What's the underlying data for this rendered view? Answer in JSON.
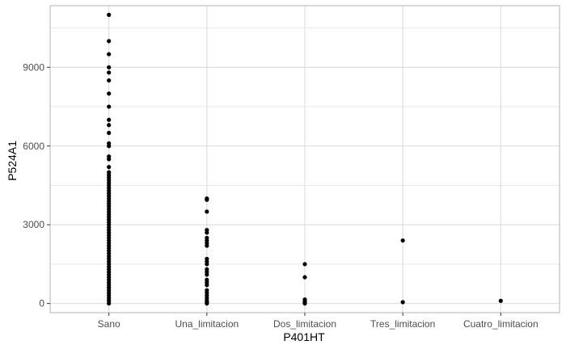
{
  "chart_data": {
    "type": "scatter",
    "xlabel": "P401HT",
    "ylabel": "P524A1",
    "categories": [
      "Sano",
      "Una_limitacion",
      "Dos_limitacion",
      "Tres_limitacion",
      "Cuatro_limitacion"
    ],
    "yticks": [
      0,
      3000,
      6000,
      9000
    ],
    "ylim": [
      -350,
      11350
    ],
    "grid": true,
    "colors": {
      "points": "#000000",
      "grid": "#dcdcdc",
      "panel_border": "#b3b3b3"
    },
    "points": [
      {
        "x": "Sano",
        "y": 11000
      },
      {
        "x": "Sano",
        "y": 10000
      },
      {
        "x": "Sano",
        "y": 9500
      },
      {
        "x": "Sano",
        "y": 9000
      },
      {
        "x": "Sano",
        "y": 8800
      },
      {
        "x": "Sano",
        "y": 8500
      },
      {
        "x": "Sano",
        "y": 8000
      },
      {
        "x": "Sano",
        "y": 7500
      },
      {
        "x": "Sano",
        "y": 7000
      },
      {
        "x": "Sano",
        "y": 6800
      },
      {
        "x": "Sano",
        "y": 6500
      },
      {
        "x": "Sano",
        "y": 6100
      },
      {
        "x": "Sano",
        "y": 6000
      },
      {
        "x": "Sano",
        "y": 5600
      },
      {
        "x": "Sano",
        "y": 5500
      },
      {
        "x": "Sano",
        "y": 5200
      },
      {
        "x": "Sano",
        "y": 5000
      },
      {
        "x": "Sano",
        "y": 4900
      },
      {
        "x": "Sano",
        "y": 4800
      },
      {
        "x": "Sano",
        "y": 4700
      },
      {
        "x": "Sano",
        "y": 4600
      },
      {
        "x": "Sano",
        "y": 4500
      },
      {
        "x": "Sano",
        "y": 4400
      },
      {
        "x": "Sano",
        "y": 4300
      },
      {
        "x": "Sano",
        "y": 4200
      },
      {
        "x": "Sano",
        "y": 4100
      },
      {
        "x": "Sano",
        "y": 4000
      },
      {
        "x": "Sano",
        "y": 3900
      },
      {
        "x": "Sano",
        "y": 3800
      },
      {
        "x": "Sano",
        "y": 3700
      },
      {
        "x": "Sano",
        "y": 3600
      },
      {
        "x": "Sano",
        "y": 3500
      },
      {
        "x": "Sano",
        "y": 3400
      },
      {
        "x": "Sano",
        "y": 3300
      },
      {
        "x": "Sano",
        "y": 3200
      },
      {
        "x": "Sano",
        "y": 3100
      },
      {
        "x": "Sano",
        "y": 3000
      },
      {
        "x": "Sano",
        "y": 2900
      },
      {
        "x": "Sano",
        "y": 2800
      },
      {
        "x": "Sano",
        "y": 2700
      },
      {
        "x": "Sano",
        "y": 2600
      },
      {
        "x": "Sano",
        "y": 2500
      },
      {
        "x": "Sano",
        "y": 2400
      },
      {
        "x": "Sano",
        "y": 2300
      },
      {
        "x": "Sano",
        "y": 2200
      },
      {
        "x": "Sano",
        "y": 2100
      },
      {
        "x": "Sano",
        "y": 2000
      },
      {
        "x": "Sano",
        "y": 1900
      },
      {
        "x": "Sano",
        "y": 1800
      },
      {
        "x": "Sano",
        "y": 1700
      },
      {
        "x": "Sano",
        "y": 1600
      },
      {
        "x": "Sano",
        "y": 1500
      },
      {
        "x": "Sano",
        "y": 1400
      },
      {
        "x": "Sano",
        "y": 1300
      },
      {
        "x": "Sano",
        "y": 1200
      },
      {
        "x": "Sano",
        "y": 1100
      },
      {
        "x": "Sano",
        "y": 1000
      },
      {
        "x": "Sano",
        "y": 900
      },
      {
        "x": "Sano",
        "y": 800
      },
      {
        "x": "Sano",
        "y": 700
      },
      {
        "x": "Sano",
        "y": 600
      },
      {
        "x": "Sano",
        "y": 500
      },
      {
        "x": "Sano",
        "y": 400
      },
      {
        "x": "Sano",
        "y": 300
      },
      {
        "x": "Sano",
        "y": 200
      },
      {
        "x": "Sano",
        "y": 100
      },
      {
        "x": "Sano",
        "y": 0
      },
      {
        "x": "Una_limitacion",
        "y": 4000
      },
      {
        "x": "Una_limitacion",
        "y": 3950
      },
      {
        "x": "Una_limitacion",
        "y": 3500
      },
      {
        "x": "Una_limitacion",
        "y": 2800
      },
      {
        "x": "Una_limitacion",
        "y": 2700
      },
      {
        "x": "Una_limitacion",
        "y": 2500
      },
      {
        "x": "Una_limitacion",
        "y": 2400
      },
      {
        "x": "Una_limitacion",
        "y": 2300
      },
      {
        "x": "Una_limitacion",
        "y": 2200
      },
      {
        "x": "Una_limitacion",
        "y": 1700
      },
      {
        "x": "Una_limitacion",
        "y": 1600
      },
      {
        "x": "Una_limitacion",
        "y": 1500
      },
      {
        "x": "Una_limitacion",
        "y": 1300
      },
      {
        "x": "Una_limitacion",
        "y": 1200
      },
      {
        "x": "Una_limitacion",
        "y": 1100
      },
      {
        "x": "Una_limitacion",
        "y": 900
      },
      {
        "x": "Una_limitacion",
        "y": 800
      },
      {
        "x": "Una_limitacion",
        "y": 700
      },
      {
        "x": "Una_limitacion",
        "y": 500
      },
      {
        "x": "Una_limitacion",
        "y": 400
      },
      {
        "x": "Una_limitacion",
        "y": 300
      },
      {
        "x": "Una_limitacion",
        "y": 200
      },
      {
        "x": "Una_limitacion",
        "y": 100
      },
      {
        "x": "Una_limitacion",
        "y": 50
      },
      {
        "x": "Una_limitacion",
        "y": 0
      },
      {
        "x": "Dos_limitacion",
        "y": 1500
      },
      {
        "x": "Dos_limitacion",
        "y": 1000
      },
      {
        "x": "Dos_limitacion",
        "y": 150
      },
      {
        "x": "Dos_limitacion",
        "y": 100
      },
      {
        "x": "Dos_limitacion",
        "y": 50
      },
      {
        "x": "Dos_limitacion",
        "y": 0
      },
      {
        "x": "Tres_limitacion",
        "y": 2400
      },
      {
        "x": "Tres_limitacion",
        "y": 50
      },
      {
        "x": "Cuatro_limitacion",
        "y": 100
      }
    ]
  }
}
